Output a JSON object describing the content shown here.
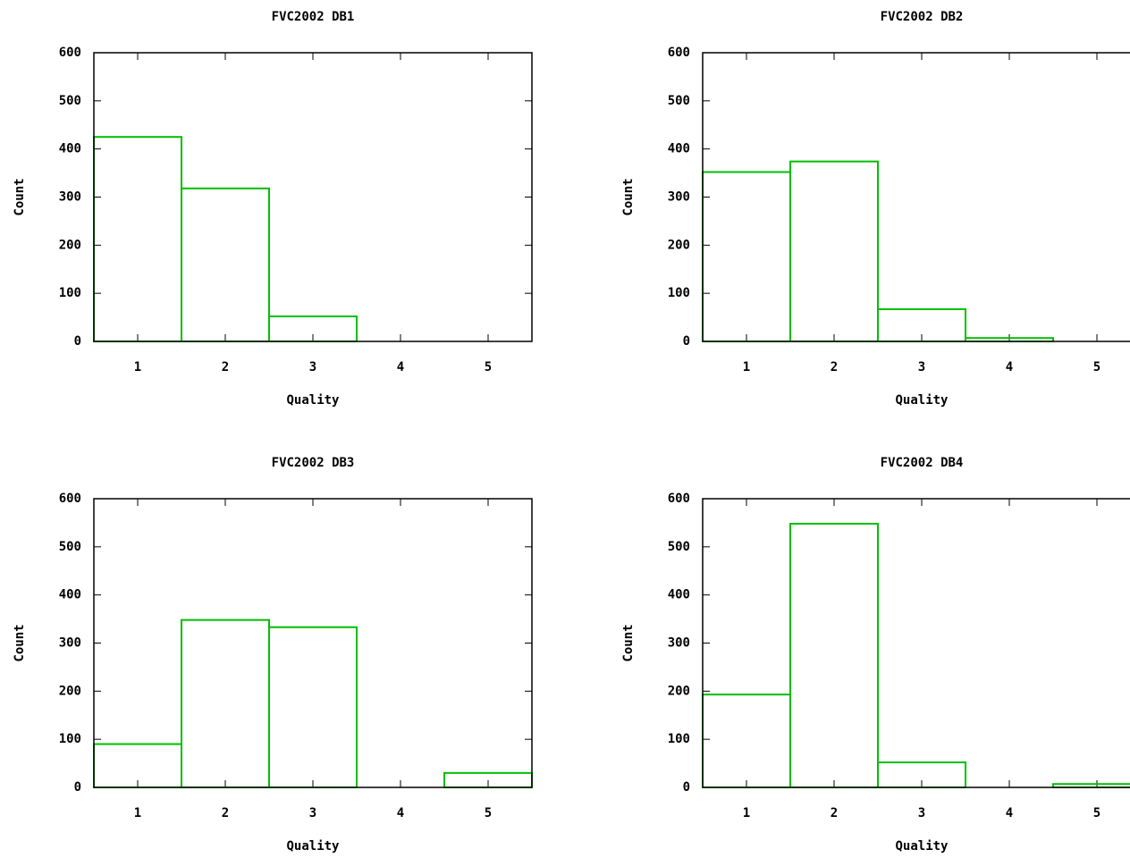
{
  "chart_data": [
    {
      "type": "bar",
      "title": "FVC2002 DB1",
      "xlabel": "Quality",
      "ylabel": "Count",
      "x": [
        1,
        2,
        3,
        4,
        5
      ],
      "values": [
        425,
        318,
        52,
        0,
        0
      ],
      "color": "#00c000",
      "xlim": [
        0.5,
        5.5
      ],
      "ylim": [
        0,
        600
      ],
      "xticks": [
        1,
        2,
        3,
        4,
        5
      ],
      "yticks": [
        0,
        100,
        200,
        300,
        400,
        500,
        600
      ]
    },
    {
      "type": "bar",
      "title": "FVC2002 DB2",
      "xlabel": "Quality",
      "ylabel": "Count",
      "x": [
        1,
        2,
        3,
        4,
        5
      ],
      "values": [
        352,
        374,
        67,
        7,
        0
      ],
      "color": "#00c000",
      "xlim": [
        0.5,
        5.5
      ],
      "ylim": [
        0,
        600
      ],
      "xticks": [
        1,
        2,
        3,
        4,
        5
      ],
      "yticks": [
        0,
        100,
        200,
        300,
        400,
        500,
        600
      ]
    },
    {
      "type": "bar",
      "title": "FVC2002 DB3",
      "xlabel": "Quality",
      "ylabel": "Count",
      "x": [
        1,
        2,
        3,
        4,
        5
      ],
      "values": [
        90,
        348,
        333,
        0,
        30
      ],
      "color": "#00c000",
      "xlim": [
        0.5,
        5.5
      ],
      "ylim": [
        0,
        600
      ],
      "xticks": [
        1,
        2,
        3,
        4,
        5
      ],
      "yticks": [
        0,
        100,
        200,
        300,
        400,
        500,
        600
      ]
    },
    {
      "type": "bar",
      "title": "FVC2002 DB4",
      "xlabel": "Quality",
      "ylabel": "Count",
      "x": [
        1,
        2,
        3,
        4,
        5
      ],
      "values": [
        193,
        548,
        52,
        0,
        7
      ],
      "color": "#00c000",
      "xlim": [
        0.5,
        5.5
      ],
      "ylim": [
        0,
        600
      ],
      "xticks": [
        1,
        2,
        3,
        4,
        5
      ],
      "yticks": [
        0,
        100,
        200,
        300,
        400,
        500,
        600
      ]
    }
  ]
}
